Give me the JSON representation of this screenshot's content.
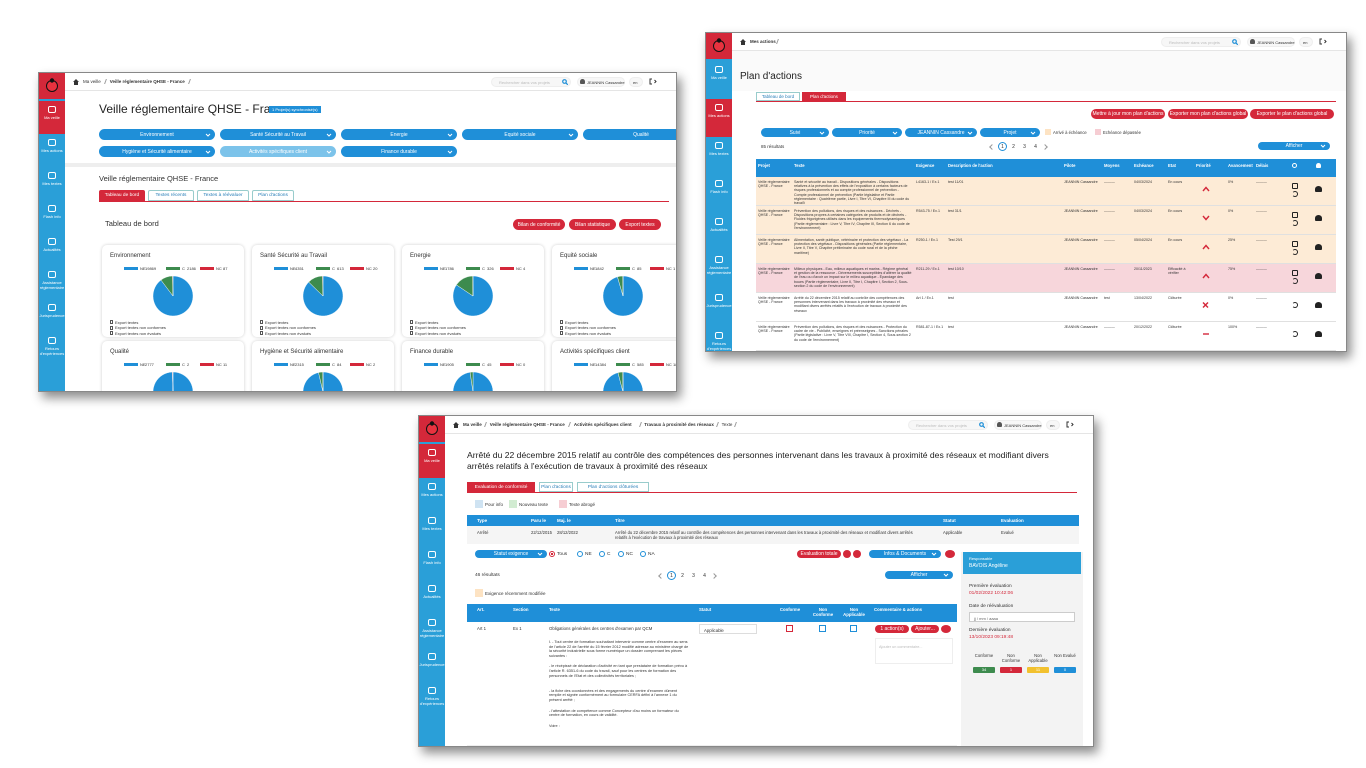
{
  "common": {
    "search": "Rechercher dans vos projets",
    "user": "JEANNIN Cassandre",
    "lang": "en",
    "sidebar": [
      "Ma veille",
      "Mes actions",
      "Mes textes",
      "Flash info",
      "Actualités",
      "Assistance réglementaire",
      "Jurisprudence",
      "Retours d'expériences"
    ],
    "pages": [
      "1",
      "2",
      "3",
      "4"
    ]
  },
  "dashboard": {
    "breadcrumb": [
      "Ma veille",
      "Veille réglementaire QHSE - France"
    ],
    "title": "Veille réglementaire QHSE - France",
    "badge": "1 Projet(s) synchronisé(s)",
    "filters": [
      "Environnement",
      "Santé Sécurité au Travail",
      "Energie",
      "Equité sociale",
      "Qualité",
      "Hygiène et Sécurité alimentaire",
      "Activités spécifiques client",
      "Finance durable"
    ],
    "subtitle": "Veille réglementaire QHSE - France",
    "tabs": [
      "Tableau de bord",
      "Textes récents",
      "Textes à réévaluer",
      "Plan d'actions"
    ],
    "board_title": "Tableau de bord",
    "buttons": [
      "Bilan de conformité",
      "Bilan statistique",
      "Export textes"
    ],
    "legend_labels": [
      "NE",
      "C",
      "NC"
    ],
    "legend_colors": [
      "#1f8fd8",
      "#3d8b4e",
      "#d4283a"
    ],
    "links": [
      "Export textes",
      "Export textes non conformes",
      "Export textes non évalués"
    ],
    "cards": [
      {
        "name": "Environnement",
        "ne": 19869,
        "c": 2186,
        "nc": 87
      },
      {
        "name": "Santé Sécurité au Travail",
        "ne": 4351,
        "c": 613,
        "nc": 20
      },
      {
        "name": "Energie",
        "ne": 1786,
        "c": 326,
        "nc": 4
      },
      {
        "name": "Equité sociale",
        "ne": 1842,
        "c": 85,
        "nc": 1
      },
      {
        "name": "Qualité",
        "ne": 2777,
        "c": 2,
        "nc": 11
      },
      {
        "name": "Hygiène et Sécurité alimentaire",
        "ne": 2315,
        "c": 84,
        "nc": 2
      },
      {
        "name": "Finance durable",
        "ne": 1905,
        "c": 45,
        "nc": 0
      },
      {
        "name": "Activités spécifiques client",
        "ne": 14384,
        "c": 585,
        "nc": 18
      }
    ]
  },
  "actions": {
    "breadcrumb": [
      "Mes actions"
    ],
    "title": "Plan d'actions",
    "tabs": [
      "Tableau de bord",
      "Plan d'actions"
    ],
    "buttons": [
      "Mettre à jour mon plan d'actions",
      "Exporter mon plan d'actions global",
      "Exporter le plan d'actions global"
    ],
    "filters": [
      "Suivi",
      "Priorité",
      "JEANNIN Cassandre",
      "Projet"
    ],
    "legend": [
      "Arrivé à échéance",
      "Echéance dépassée"
    ],
    "results": "85 résultats",
    "display": "Afficher",
    "headers": [
      "Projet",
      "Texte",
      "Exigence",
      "Description de l'action",
      "Pilote",
      "Moyens",
      "Echéance",
      "Etat",
      "Priorité",
      "Avancement",
      "Délais"
    ],
    "rows": [
      [
        "Veille réglementaire QHSE - France",
        "Santé et sécurité au travail - Dispositions générales - Dispositions relatives à la prévention des effets de l'exposition à certains facteurs de risques professionnels et au compte professionnel de prévention - Compte professionnel de prévention (Partie législative et Partie réglementaire : Quatrième partie, Livre I, Titre VI, Chapitre III du code du travail)",
        "L4163-1 / Ex.1",
        "test 11/01",
        "JEANNIN Cassandre",
        "———",
        "04/03/2024",
        "En cours",
        "",
        "0%",
        "———"
      ],
      [
        "Veille réglementaire QHSE - France",
        "Prévention des pollutions, des risques et des nuisances - Déchets - Dispositions propres à certaines catégories de produits et de déchets - Fluides frigorigènes utilisés dans les équipements thermodynamiques (Partie réglementaire : Livre V, Titre IV, Chapitre III, Section 6 du code de l'environnement)",
        "R543-75 / Ex.1",
        "test 31/1",
        "JEANNIN Cassandre",
        "———",
        "04/03/2024",
        "En cours",
        "",
        "0%",
        "———"
      ],
      [
        "Veille réglementaire QHSE - France",
        "Alimentation, santé publique, vétérinaire et protection des végétaux - La protection des végétaux - Dispositions générales (Partie réglementaire, Livre II, Titre V, Chapitre préliminaire du code rural et de la pêche maritime)",
        "R250-1 / Ex.1",
        "Test 29/1",
        "JEANNIN Cassandre",
        "———",
        "05/04/2024",
        "En cours",
        "",
        "25%",
        "———"
      ],
      [
        "Veille réglementaire QHSE - France",
        "Milieux physiques - Eau, milieux aquatiques et marins - Régime général et gestion de la ressource - Déversements susceptibles d'altérer la qualité de l'eau ou d'avoir un impact sur le milieu aquatique - Épandage des boues (Partie réglementaire, Livre II, Titre I, Chapitre I, Section 2, Sous-section 2 du code de l'environnement)",
        "R211-29 / Ex.1",
        "test 10/10",
        "JEANNIN Cassandre",
        "———",
        "20/11/2023",
        "Efficacité à vérifier",
        "",
        "75%",
        "———"
      ],
      [
        "Veille réglementaire QHSE - France",
        "Arrêté du 22 décembre 2015 relatif au contrôle des compétences des personnes intervenant dans les travaux à proximité des réseaux et modifiant divers arrêtés relatifs à l'exécution de travaux à proximité des réseaux",
        "Art 1 / Ex.1",
        "test",
        "JEANNIN Cassandre",
        "test",
        "13/04/2022",
        "Clôturée",
        "",
        "0%",
        "———"
      ],
      [
        "Veille réglementaire QHSE - France",
        "Prévention des pollutions, des risques et des nuisances - Protection du cadre de vie - Publicité, enseignes et préenseignes - Sanctions pénales (Partie législative : Livre V, Titre VIII, Chapitre I, Section 4, Sous-section 2 du code de l'environnement)",
        "R581-87-1 / Ex.1",
        "test",
        "JEANNIN Cassandre",
        "———",
        "20/12/2022",
        "Clôturée",
        "",
        "100%",
        "———"
      ]
    ]
  },
  "text_page": {
    "breadcrumb": [
      "Ma veille",
      "Veille réglementaire QHSE - France",
      "Activités spécifiques client",
      "Travaux à proximité des réseaux",
      "Texte"
    ],
    "title": "Arrêté du 22 décembre 2015 relatif au contrôle des compétences des personnes intervenant dans les travaux à proximité des réseaux et modifiant divers arrêtés relatifs à l'exécution de travaux à proximité des réseaux",
    "tabs": [
      "Evaluation de conformité",
      "Plan d'actions",
      "Plan d'actions clôturées"
    ],
    "legend": [
      "Pour info",
      "Nouveau texte",
      "Texte abrogé"
    ],
    "info_headers": [
      "Type",
      "Paru le",
      "Maj. le",
      "Titre",
      "Statut",
      "Evaluation"
    ],
    "info_row": [
      "Arrêté",
      "22/12/2015",
      "28/12/2022",
      "Arrêté du 22 décembre 2015 relatif au contrôle des compétences des personnes intervenant dans les travaux à proximité des réseaux et modifiant divers arrêtés relatifs à l'exécution de travaux à proximité des réseaux",
      "Applicable",
      "Evalué"
    ],
    "status_filter": "Statut exigence",
    "radios": [
      "Tous",
      "NE",
      "C",
      "NC",
      "NA"
    ],
    "buttons": [
      "Evaluation totale",
      "Infos & Documents"
    ],
    "results": "46 résultats",
    "display": "Afficher",
    "modified": "Exigence récemment modifiée",
    "headers": [
      "Art.",
      "Section",
      "Texte",
      "Statut",
      "Conforme",
      "Non Conforme",
      "Non Applicable",
      "Commentaire & actions"
    ],
    "row": {
      "art": "Art 1",
      "section": "Ex 1",
      "heading": "Obligations générales des centres d'examen par QCM",
      "status": "Applicable",
      "actions": "1 action(s)",
      "add": "Ajouter...",
      "comment": "Ajouter un commentaire...",
      "paragraphs": [
        "I. - Tout centre de formation souhaitant intervenir comme centre d'examen au sens de l'article 22 de l'arrêté du 15 février 2012 modifié adresse au ministère chargé de la sécurité industrielle sous forme numérique un dossier comprenant les pièces suivantes :",
        "- le récépissé de déclaration d'activité en tant que prestataire de formation prévu à l'article R. 6351-6 du code du travail, sauf pour les centres de formation des personnels de l'Etat et des collectivités territoriales ;",
        "- la fiche des coordonnées et des engagements du centre d'examen dûment remplie et signée conformément au formulaire CERFA défini à l'annexe 1 du présent arrêté ;",
        "- l'attestation de compétence comme Concepteur d'au moins un formateur du centre de formation, en cours de validité.",
        "Voire :"
      ]
    },
    "panel": {
      "resp_label": "Responsable",
      "resp": "BAVOIS Angéline",
      "first_label": "Première évaluation",
      "first": "01/02/2022 10:42:06",
      "re_label": "Date de réévaluation",
      "re_placeholder": "jj / mm / aaaa",
      "last_label": "Dernière évaluation",
      "last": "13/10/2023 09:19:48",
      "counts": [
        {
          "label": "Conforme",
          "value": 34,
          "color": "#3d8b4e"
        },
        {
          "label": "Non Conforme",
          "value": 1,
          "color": "#d4283a"
        },
        {
          "label": "Non Applicable",
          "value": 11,
          "color": "#f2c12e"
        },
        {
          "label": "Non Evalué",
          "value": 0,
          "color": "#1f8fd8"
        }
      ]
    }
  }
}
